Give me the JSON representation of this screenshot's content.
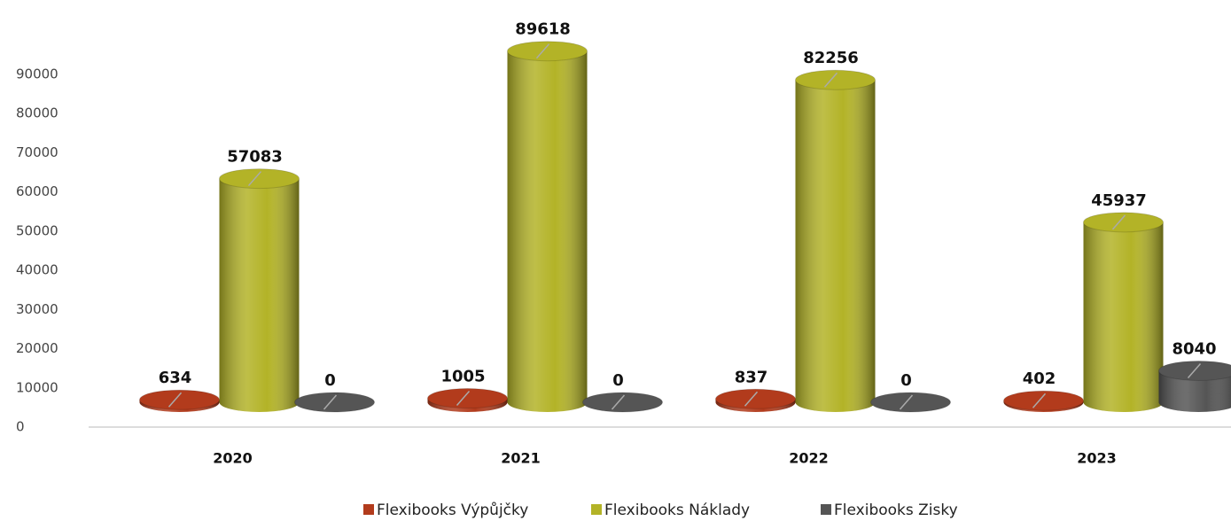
{
  "chart_data": {
    "type": "bar3d",
    "categories": [
      "2020",
      "2021",
      "2022",
      "2023"
    ],
    "series": [
      {
        "name": "Flexibooks Výpůjčky",
        "color": "#b23b1c",
        "values": [
          634,
          1005,
          837,
          402
        ]
      },
      {
        "name": "Flexibooks Náklady",
        "color": "#b3b327",
        "values": [
          57083,
          89618,
          82256,
          45937
        ]
      },
      {
        "name": "Flexibooks Zisky",
        "color": "#555555",
        "values": [
          0,
          0,
          0,
          8040
        ]
      }
    ],
    "ylim": [
      0,
      90000
    ],
    "yticks": [
      0,
      10000,
      20000,
      30000,
      40000,
      50000,
      60000,
      70000,
      80000,
      90000
    ],
    "legend": "bottom"
  }
}
